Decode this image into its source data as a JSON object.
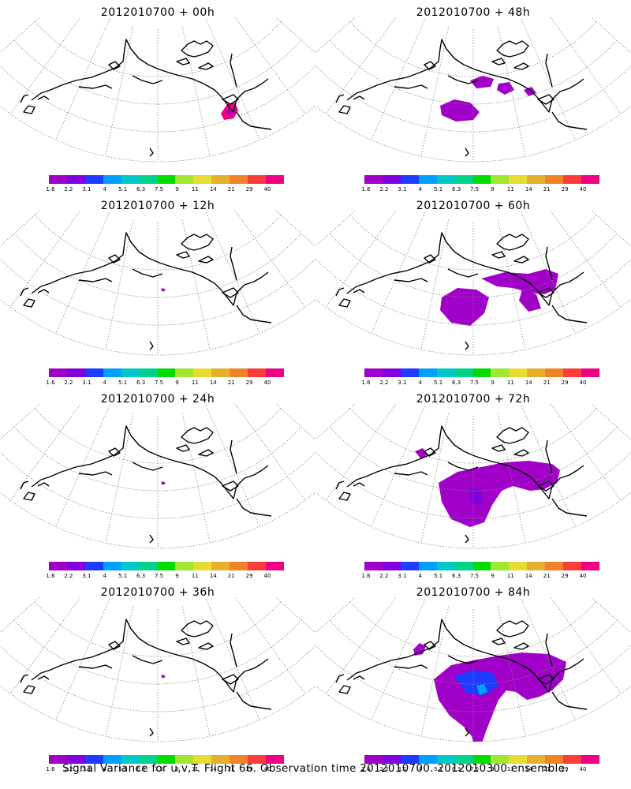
{
  "panels": [
    {
      "title": "2012010700 + 00h",
      "level": 0
    },
    {
      "title": "2012010700 + 48h",
      "level": 2
    },
    {
      "title": "2012010700 + 12h",
      "level": 1
    },
    {
      "title": "2012010700 + 60h",
      "level": 3
    },
    {
      "title": "2012010700 + 24h",
      "level": 1
    },
    {
      "title": "2012010700 + 72h",
      "level": 4
    },
    {
      "title": "2012010700 + 36h",
      "level": 1
    },
    {
      "title": "2012010700 + 84h",
      "level": 5
    }
  ],
  "colorbar": {
    "colors": [
      "#a000c8",
      "#8200dc",
      "#1e3cff",
      "#00a0ff",
      "#00c8c8",
      "#00d28c",
      "#00dc00",
      "#a0e632",
      "#e6dc32",
      "#e6af2d",
      "#f08228",
      "#fa3c3c",
      "#f00082"
    ],
    "labels": [
      "1.6",
      "2.2",
      "3.1",
      "4",
      "5.1",
      "6.3",
      "7.5",
      "9",
      "11",
      "14",
      "21",
      "29",
      "40"
    ]
  },
  "caption": "Signal Variance for u,v,T. Flight 66. Observation time 2012010700. 2012010300 ensemble."
}
